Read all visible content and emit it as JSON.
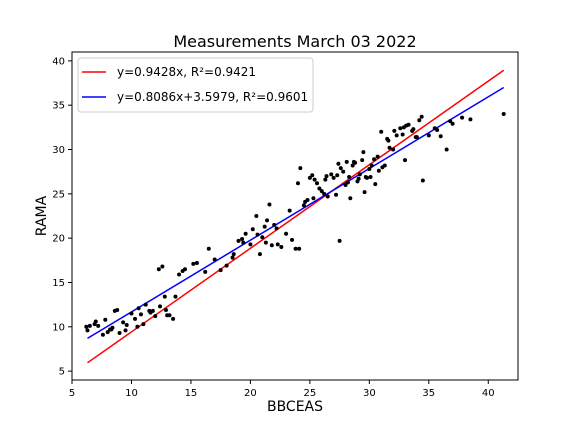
{
  "chart_data": {
    "type": "scatter",
    "title": "Measurements March 03 2022",
    "xlabel": "BBCEAS",
    "ylabel": "RAMA",
    "xlim": [
      5,
      42.5
    ],
    "ylim": [
      4,
      41
    ],
    "xticks": [
      5,
      10,
      15,
      20,
      25,
      30,
      35,
      40
    ],
    "yticks": [
      5,
      10,
      15,
      20,
      25,
      30,
      35,
      40
    ],
    "legend_position": "top-left",
    "grid": false,
    "points": {
      "color": "#000000",
      "x": [
        6.3,
        6.5,
        6.9,
        7.0,
        7.6,
        7.8,
        8.0,
        8.2,
        8.4,
        8.6,
        8.8,
        9.0,
        9.3,
        9.6,
        10.0,
        10.3,
        10.6,
        10.8,
        11.0,
        11.2,
        11.5,
        12.0,
        12.3,
        12.6,
        12.8,
        13.0,
        13.5,
        14.0,
        14.3,
        14.5,
        15.5,
        16.5,
        17.5,
        18.0,
        18.5,
        19.0,
        19.3,
        19.6,
        20.0,
        20.2,
        20.5,
        20.8,
        21.0,
        21.2,
        21.4,
        21.6,
        21.8,
        22.0,
        22.3,
        22.6,
        23.0,
        23.5,
        23.8,
        24.0,
        24.2,
        24.5,
        24.8,
        25.0,
        25.2,
        25.4,
        25.6,
        25.8,
        26.0,
        26.2,
        26.5,
        26.8,
        27.0,
        27.3,
        27.5,
        27.8,
        28.0,
        28.2,
        28.4,
        28.6,
        28.8,
        29.0,
        29.2,
        29.4,
        29.6,
        29.8,
        30.0,
        30.2,
        30.5,
        30.8,
        31.0,
        31.3,
        31.6,
        32.0,
        32.3,
        32.6,
        33.0,
        33.3,
        33.6,
        34.0,
        34.2,
        34.5,
        35.0,
        35.5,
        36.0,
        36.5,
        37.0,
        38.5,
        41.3,
        6.2,
        7.2,
        8.3,
        9.5,
        10.5,
        11.8,
        12.4,
        13.2,
        15.2,
        17.0,
        18.6,
        19.4,
        20.6,
        22.2,
        23.3,
        24.6,
        25.3,
        26.3,
        27.6,
        28.7,
        29.5,
        30.4,
        31.5,
        32.8,
        33.9,
        34.4,
        26.4,
        27.2,
        28.1,
        29.1,
        30.1,
        31.1,
        32.1,
        33.1,
        21.3,
        24.1,
        27.4,
        28.3,
        29.7,
        30.7,
        31.7,
        32.9,
        33.7,
        35.7,
        36.8,
        37.8,
        16.2,
        11.6,
        13.7,
        12.9
      ],
      "y": [
        9.6,
        10.1,
        10.3,
        10.6,
        9.1,
        10.8,
        9.4,
        9.7,
        9.9,
        11.8,
        11.9,
        9.3,
        10.5,
        10.2,
        11.5,
        10.9,
        12.1,
        11.4,
        10.3,
        12.5,
        11.8,
        11.2,
        16.5,
        16.8,
        13.4,
        11.3,
        10.9,
        15.9,
        16.3,
        16.5,
        17.2,
        18.8,
        16.4,
        16.9,
        17.8,
        19.7,
        19.9,
        20.5,
        19.3,
        21.0,
        22.5,
        18.2,
        20.1,
        21.3,
        22.0,
        23.8,
        19.2,
        21.5,
        19.3,
        19.0,
        20.5,
        19.8,
        18.8,
        26.2,
        27.9,
        23.7,
        24.3,
        26.8,
        27.1,
        26.6,
        26.2,
        25.6,
        25.3,
        25.0,
        24.7,
        27.2,
        26.8,
        27.1,
        19.7,
        27.5,
        26.0,
        26.3,
        24.5,
        28.2,
        28.5,
        26.4,
        27.2,
        28.8,
        25.2,
        26.8,
        27.8,
        28.2,
        26.1,
        27.6,
        32.0,
        28.2,
        31.0,
        30.0,
        31.6,
        32.4,
        28.8,
        32.8,
        32.1,
        31.4,
        33.3,
        26.5,
        31.6,
        32.4,
        31.5,
        30.0,
        32.9,
        33.4,
        34.0,
        10.0,
        10.1,
        9.7,
        9.6,
        10.0,
        11.8,
        12.3,
        11.3,
        17.1,
        17.6,
        18.2,
        19.5,
        20.4,
        21.1,
        23.1,
        24.1,
        24.5,
        26.6,
        27.9,
        28.6,
        29.7,
        28.9,
        31.2,
        31.7,
        31.4,
        33.7,
        27.0,
        24.9,
        28.6,
        26.7,
        26.9,
        28.0,
        32.1,
        32.7,
        19.5,
        18.8,
        28.4,
        26.9,
        26.9,
        29.2,
        30.2,
        32.5,
        32.3,
        32.2,
        33.2,
        33.6,
        16.2,
        11.6,
        13.4,
        11.9
      ]
    },
    "series": [
      {
        "name": "y=0.9428x, R²=0.9421",
        "color": "#ff0000",
        "slope": 0.9428,
        "intercept": 0,
        "x_range": [
          6.3,
          41.3
        ]
      },
      {
        "name": "y=0.8086x+3.5979, R²=0.9601",
        "color": "#0000ff",
        "slope": 0.8086,
        "intercept": 3.5979,
        "x_range": [
          6.3,
          41.3
        ]
      }
    ]
  }
}
